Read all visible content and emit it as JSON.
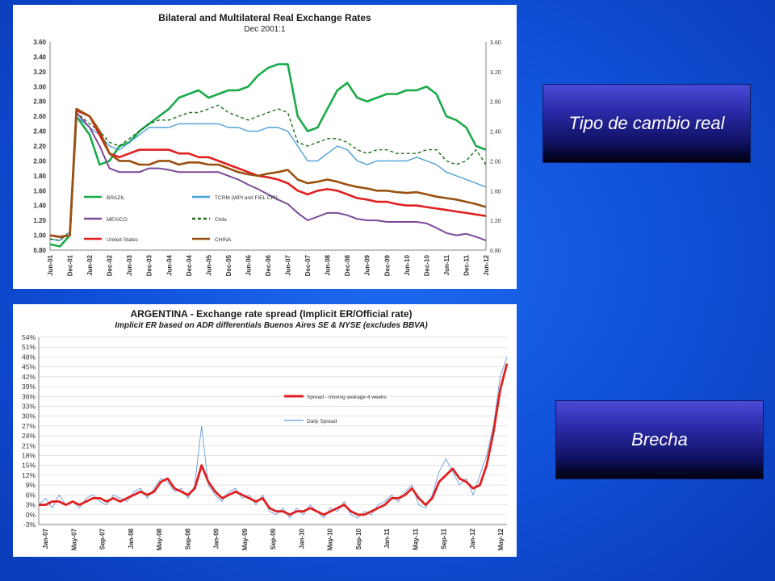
{
  "labels": {
    "box1": "Tipo de cambio real",
    "box2": "Brecha"
  },
  "chart_data": [
    {
      "type": "line",
      "title": "Bilateral and Multilateral Real Exchange Rates",
      "subtitle": "Dec 2001:1",
      "ylim": [
        0.8,
        3.6
      ],
      "y_ticks": [
        "0.80",
        "1.00",
        "1.20",
        "1.40",
        "1.60",
        "1.80",
        "2.00",
        "2.20",
        "2.40",
        "2.60",
        "2.80",
        "3.00",
        "3.20",
        "3.40",
        "3.60"
      ],
      "y2_ticks": [
        "0.80",
        "1.20",
        "1.60",
        "2.00",
        "2.40",
        "2.80",
        "3.20",
        "3.60"
      ],
      "x_ticks": [
        "Jun-01",
        "Dec-01",
        "Jun-02",
        "Dec-02",
        "Jun-03",
        "Dec-03",
        "Jun-04",
        "Dec-04",
        "Jun-05",
        "Dec-05",
        "Jun-06",
        "Dec-06",
        "Jun-07",
        "Dec-07",
        "Jun-08",
        "Dec-08",
        "Jun-09",
        "Dec-09",
        "Jun-10",
        "Dec-10",
        "Jun-11",
        "Dec-11",
        "Jun-12"
      ],
      "x_index": [
        0,
        3,
        6,
        8,
        12,
        15,
        18,
        21,
        24,
        27,
        30,
        33,
        36,
        39,
        42,
        45,
        48,
        51,
        54,
        57,
        60,
        63,
        66,
        69,
        72,
        75,
        78,
        81,
        84,
        87,
        90,
        93,
        96,
        99,
        102,
        105,
        108,
        111,
        114,
        117,
        120,
        123,
        126,
        129,
        132
      ],
      "series": [
        {
          "name": "BRAZIL",
          "color": "#1aaa4a",
          "dash": "",
          "values": [
            0.88,
            0.85,
            1.0,
            2.6,
            2.35,
            1.95,
            2.0,
            2.2,
            2.25,
            2.4,
            2.5,
            2.6,
            2.7,
            2.85,
            2.9,
            2.95,
            2.85,
            2.9,
            2.95,
            2.95,
            3.0,
            3.15,
            3.25,
            3.3,
            3.3,
            2.6,
            2.4,
            2.45,
            2.7,
            2.95,
            3.05,
            2.85,
            2.8,
            2.85,
            2.9,
            2.9,
            2.95,
            2.95,
            3.0,
            2.9,
            2.6,
            2.55,
            2.45,
            2.2,
            2.15
          ]
        },
        {
          "name": "TCRM (WPI and FIEL CPI)",
          "color": "#4aa0d8",
          "dash": "",
          "values": [
            0.95,
            0.93,
            1.05,
            2.6,
            2.45,
            2.35,
            2.2,
            2.15,
            2.25,
            2.35,
            2.45,
            2.45,
            2.45,
            2.5,
            2.5,
            2.5,
            2.5,
            2.5,
            2.45,
            2.45,
            2.4,
            2.4,
            2.45,
            2.45,
            2.4,
            2.2,
            2.0,
            2.0,
            2.1,
            2.2,
            2.15,
            2.0,
            1.95,
            2.0,
            2.0,
            2.0,
            2.0,
            2.05,
            2.0,
            1.95,
            1.85,
            1.8,
            1.75,
            1.7,
            1.65
          ]
        },
        {
          "name": "MEXICO",
          "color": "#7a4a98",
          "dash": "",
          "values": [
            1.0,
            0.97,
            1.0,
            2.65,
            2.45,
            2.2,
            1.9,
            1.85,
            1.85,
            1.85,
            1.9,
            1.9,
            1.88,
            1.85,
            1.85,
            1.85,
            1.85,
            1.85,
            1.8,
            1.75,
            1.68,
            1.62,
            1.55,
            1.48,
            1.42,
            1.3,
            1.2,
            1.25,
            1.3,
            1.3,
            1.27,
            1.22,
            1.2,
            1.2,
            1.18,
            1.18,
            1.18,
            1.18,
            1.16,
            1.1,
            1.03,
            1.0,
            1.02,
            0.98,
            0.93
          ]
        },
        {
          "name": "Chile",
          "color": "#1e6e1e",
          "dash": "4,3",
          "values": [
            0.95,
            0.93,
            1.05,
            2.65,
            2.5,
            2.4,
            2.25,
            2.2,
            2.3,
            2.4,
            2.5,
            2.55,
            2.55,
            2.6,
            2.65,
            2.65,
            2.7,
            2.75,
            2.65,
            2.6,
            2.55,
            2.6,
            2.65,
            2.7,
            2.65,
            2.25,
            2.2,
            2.25,
            2.3,
            2.3,
            2.25,
            2.15,
            2.1,
            2.15,
            2.15,
            2.1,
            2.1,
            2.1,
            2.15,
            2.15,
            2.0,
            1.95,
            2.0,
            2.15,
            1.95
          ]
        },
        {
          "name": "United States",
          "color": "#e02020",
          "dash": "",
          "values": [
            1.0,
            0.98,
            1.0,
            2.68,
            2.6,
            2.35,
            2.1,
            2.05,
            2.1,
            2.15,
            2.15,
            2.15,
            2.15,
            2.1,
            2.1,
            2.05,
            2.05,
            2.0,
            1.95,
            1.9,
            1.85,
            1.8,
            1.78,
            1.75,
            1.7,
            1.6,
            1.55,
            1.6,
            1.62,
            1.6,
            1.55,
            1.5,
            1.48,
            1.45,
            1.45,
            1.42,
            1.4,
            1.4,
            1.38,
            1.36,
            1.34,
            1.32,
            1.3,
            1.28,
            1.26
          ]
        },
        {
          "name": "CHINA",
          "color": "#9a5010",
          "dash": "",
          "values": [
            1.0,
            0.98,
            1.0,
            2.7,
            2.6,
            2.4,
            2.1,
            2.0,
            2.0,
            1.95,
            1.95,
            2.0,
            2.0,
            1.95,
            1.98,
            1.98,
            1.95,
            1.95,
            1.9,
            1.85,
            1.82,
            1.8,
            1.83,
            1.85,
            1.88,
            1.75,
            1.7,
            1.72,
            1.75,
            1.72,
            1.68,
            1.65,
            1.63,
            1.6,
            1.6,
            1.58,
            1.57,
            1.58,
            1.55,
            1.52,
            1.5,
            1.48,
            1.45,
            1.42,
            1.38
          ]
        }
      ]
    },
    {
      "type": "line",
      "title": "ARGENTINA - Exchange rate spread (Implicit ER/Official rate)",
      "subtitle": "Implicit ER based on ADR differentials Buenos Aires SE & NYSE (excludes BBVA)",
      "ylim": [
        -3,
        54
      ],
      "y_ticks": [
        "-3%",
        "0%",
        "3%",
        "6%",
        "9%",
        "12%",
        "15%",
        "18%",
        "21%",
        "24%",
        "27%",
        "30%",
        "33%",
        "36%",
        "39%",
        "42%",
        "45%",
        "48%",
        "51%",
        "54%"
      ],
      "x_ticks": [
        "Jan-07",
        "May-07",
        "Sep-07",
        "Jan-08",
        "May-08",
        "Sep-08",
        "Jan-09",
        "May-09",
        "Sep-09",
        "Jan-10",
        "May-10",
        "Sep-10",
        "Jan-11",
        "May-11",
        "Sep-11",
        "Jan-12",
        "May-12"
      ],
      "x_index": [
        0,
        1,
        2,
        3,
        4,
        5,
        6,
        7,
        8,
        9,
        10,
        11,
        12,
        13,
        14,
        15,
        16,
        17,
        18,
        19,
        20,
        21,
        22,
        23,
        24,
        25,
        26,
        27,
        28,
        29,
        30,
        31,
        32,
        33,
        34,
        35,
        36,
        37,
        38,
        39,
        40,
        41,
        42,
        43,
        44,
        45,
        46,
        47,
        48,
        49,
        50,
        51,
        52,
        53,
        54,
        55,
        56,
        57,
        58,
        59,
        60,
        61,
        62,
        63,
        64,
        65,
        66,
        67,
        68,
        69
      ],
      "series": [
        {
          "name": "Spread - moving average 4 weeks",
          "color": "#e02020",
          "values": [
            3,
            3,
            4,
            4,
            3,
            4,
            3,
            4,
            5,
            5,
            4,
            5,
            4,
            5,
            6,
            7,
            6,
            7,
            10,
            11,
            8,
            7,
            6,
            8,
            15,
            10,
            7,
            5,
            6,
            7,
            6,
            5,
            4,
            5,
            2,
            1,
            1,
            0,
            1,
            1,
            2,
            1,
            0,
            1,
            2,
            3,
            1,
            0,
            0,
            1,
            2,
            3,
            5,
            5,
            6,
            8,
            5,
            3,
            5,
            10,
            12,
            14,
            11,
            10,
            8,
            9,
            15,
            25,
            38,
            46
          ]
        },
        {
          "name": "Daily Spread",
          "color": "#6a9ad6",
          "values": [
            3,
            5,
            2,
            6,
            3,
            4,
            2,
            5,
            6,
            4,
            3,
            6,
            5,
            4,
            7,
            8,
            5,
            8,
            11,
            10,
            7,
            8,
            5,
            9,
            27,
            9,
            6,
            4,
            7,
            8,
            5,
            6,
            3,
            6,
            1,
            0,
            2,
            -1,
            2,
            0,
            3,
            1,
            -1,
            2,
            1,
            4,
            0,
            -1,
            1,
            0,
            3,
            4,
            6,
            4,
            7,
            9,
            3,
            2,
            6,
            13,
            17,
            13,
            9,
            11,
            6,
            12,
            18,
            27,
            42,
            48
          ]
        }
      ]
    }
  ]
}
